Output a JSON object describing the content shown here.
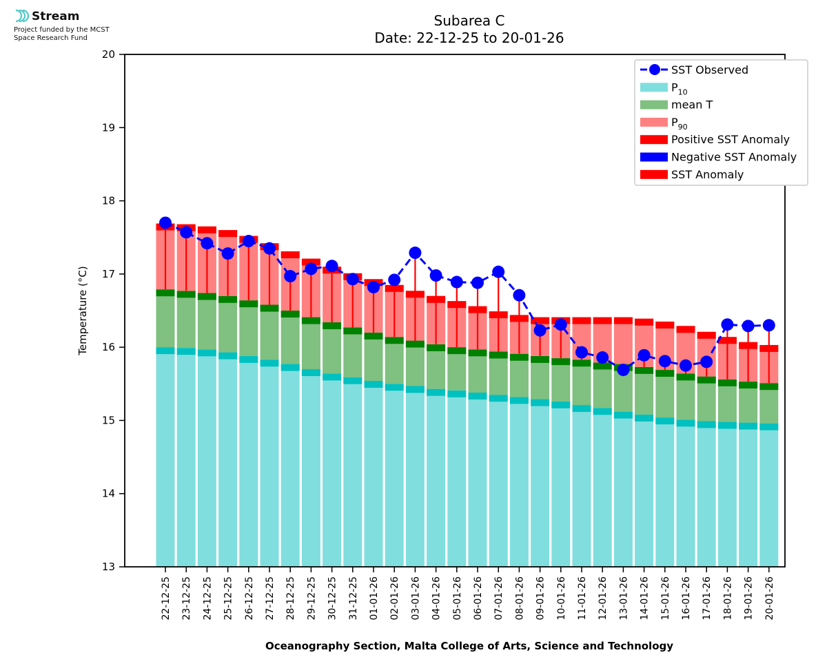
{
  "logo": {
    "name": "Stream",
    "line1": "Project funded by the MCST",
    "line2": "Space Research Fund"
  },
  "colors": {
    "p10": "#80dede",
    "p10_cap": "#00c0c0",
    "mean": "#80c080",
    "mean_cap": "#008000",
    "p90": "#ff8080",
    "p90_cap": "#ff0000",
    "observed": "#0000ff",
    "positive_anomaly": "#ff0000",
    "negative_anomaly": "#0000ff"
  },
  "chart_data": {
    "type": "bar",
    "title": "Subarea C",
    "subtitle": "Date: 22-12-25 to 20-01-26",
    "xlabel": "Oceanography Section, Malta College of Arts, Science and Technology",
    "ylabel": "Temperature (°C)",
    "ylim": [
      13,
      20
    ],
    "yticks": [
      13,
      14,
      15,
      16,
      17,
      18,
      19,
      20
    ],
    "grid": false,
    "legend_position": "top-right",
    "categories": [
      "22-12-25",
      "23-12-25",
      "24-12-25",
      "25-12-25",
      "26-12-25",
      "27-12-25",
      "28-12-25",
      "29-12-25",
      "30-12-25",
      "31-12-25",
      "01-01-26",
      "02-01-26",
      "03-01-26",
      "04-01-26",
      "05-01-26",
      "06-01-26",
      "07-01-26",
      "08-01-26",
      "09-01-26",
      "10-01-26",
      "11-01-26",
      "12-01-26",
      "13-01-26",
      "14-01-26",
      "15-01-26",
      "16-01-26",
      "17-01-26",
      "18-01-26",
      "19-01-26",
      "20-01-26"
    ],
    "legend": [
      {
        "key": "observed",
        "label": "SST Observed",
        "kind": "line"
      },
      {
        "key": "p10",
        "label": "P",
        "sub": "10",
        "kind": "patch"
      },
      {
        "key": "mean",
        "label": "mean T",
        "kind": "patch"
      },
      {
        "key": "p90",
        "label": "P",
        "sub": "90",
        "kind": "patch"
      },
      {
        "key": "positive_anomaly",
        "label": "Positive SST Anomaly",
        "kind": "patch"
      },
      {
        "key": "negative_anomaly",
        "label": "Negative SST Anomaly",
        "kind": "patch"
      },
      {
        "key": "positive_anomaly",
        "label": "SST Anomaly",
        "kind": "patch"
      }
    ],
    "series": [
      {
        "name": "P10",
        "values": [
          16.0,
          15.99,
          15.97,
          15.93,
          15.88,
          15.83,
          15.77,
          15.7,
          15.64,
          15.59,
          15.54,
          15.5,
          15.47,
          15.43,
          15.41,
          15.38,
          15.35,
          15.32,
          15.29,
          15.26,
          15.21,
          15.17,
          15.12,
          15.08,
          15.04,
          15.01,
          14.99,
          14.98,
          14.97,
          14.96
        ]
      },
      {
        "name": "mean T",
        "values": [
          16.79,
          16.77,
          16.74,
          16.7,
          16.64,
          16.58,
          16.5,
          16.41,
          16.34,
          16.27,
          16.2,
          16.14,
          16.09,
          16.04,
          16.0,
          15.97,
          15.94,
          15.91,
          15.88,
          15.85,
          15.83,
          15.79,
          15.77,
          15.73,
          15.69,
          15.64,
          15.6,
          15.56,
          15.53,
          15.51
        ]
      },
      {
        "name": "P90",
        "values": [
          17.69,
          17.68,
          17.65,
          17.6,
          17.52,
          17.42,
          17.31,
          17.21,
          17.1,
          17.01,
          16.93,
          16.85,
          16.77,
          16.7,
          16.63,
          16.56,
          16.49,
          16.44,
          16.41,
          16.41,
          16.41,
          16.41,
          16.41,
          16.39,
          16.35,
          16.29,
          16.21,
          16.14,
          16.07,
          16.03
        ]
      },
      {
        "name": "SST Observed",
        "values": [
          17.7,
          17.57,
          17.42,
          17.28,
          17.45,
          17.35,
          16.97,
          17.07,
          17.11,
          16.93,
          16.82,
          16.92,
          17.29,
          16.98,
          16.89,
          16.88,
          17.03,
          16.71,
          16.23,
          16.31,
          15.93,
          15.86,
          15.69,
          15.89,
          15.81,
          15.75,
          15.8,
          16.31,
          16.29,
          16.3
        ]
      }
    ]
  }
}
